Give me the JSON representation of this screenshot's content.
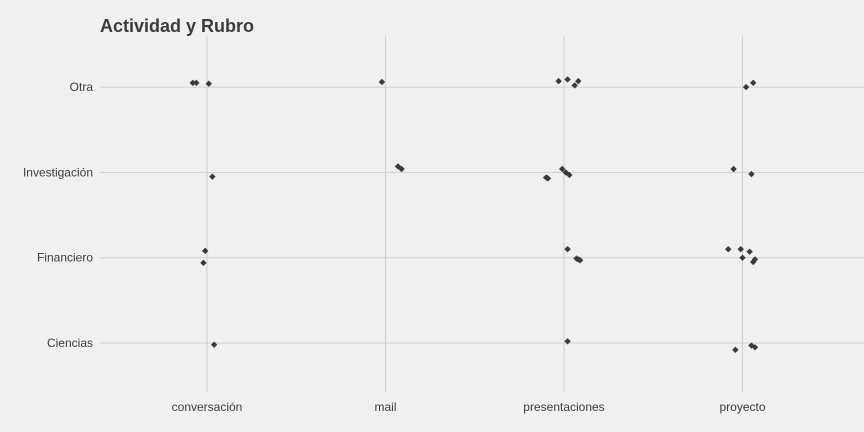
{
  "chart_data": {
    "type": "scatter",
    "title": "Actividad y Rubro",
    "xlabel": "",
    "ylabel": "",
    "x_categories": [
      "conversación",
      "mail",
      "presentaciones",
      "proyecto"
    ],
    "y_categories": [
      "Ciencias",
      "Financiero",
      "Investigación",
      "Otra"
    ],
    "grid": true,
    "legend": "none",
    "point_color": "#3a3a3a",
    "jitter": true,
    "points": [
      {
        "x": 0.92,
        "y": 3.05
      },
      {
        "x": 0.94,
        "y": 3.05
      },
      {
        "x": 1.01,
        "y": 3.04
      },
      {
        "x": 1.98,
        "y": 3.06
      },
      {
        "x": 2.97,
        "y": 3.07
      },
      {
        "x": 3.02,
        "y": 3.09
      },
      {
        "x": 3.06,
        "y": 3.02
      },
      {
        "x": 3.08,
        "y": 3.07
      },
      {
        "x": 4.02,
        "y": 3.0
      },
      {
        "x": 4.06,
        "y": 3.05
      },
      {
        "x": 1.03,
        "y": 1.95
      },
      {
        "x": 2.07,
        "y": 2.07
      },
      {
        "x": 2.09,
        "y": 2.04
      },
      {
        "x": 2.9,
        "y": 1.94
      },
      {
        "x": 2.91,
        "y": 1.93
      },
      {
        "x": 2.99,
        "y": 2.04
      },
      {
        "x": 3.01,
        "y": 2.0
      },
      {
        "x": 3.03,
        "y": 1.97
      },
      {
        "x": 3.95,
        "y": 2.04
      },
      {
        "x": 4.05,
        "y": 1.98
      },
      {
        "x": 0.99,
        "y": 1.08
      },
      {
        "x": 0.98,
        "y": 0.94
      },
      {
        "x": 3.02,
        "y": 1.1
      },
      {
        "x": 3.07,
        "y": 0.99
      },
      {
        "x": 3.09,
        "y": 0.97
      },
      {
        "x": 3.08,
        "y": 0.98
      },
      {
        "x": 3.92,
        "y": 1.1
      },
      {
        "x": 3.99,
        "y": 1.1
      },
      {
        "x": 4.04,
        "y": 1.07
      },
      {
        "x": 4.0,
        "y": 1.0
      },
      {
        "x": 4.07,
        "y": 0.98
      },
      {
        "x": 4.06,
        "y": 0.95
      },
      {
        "x": 1.04,
        "y": -0.02
      },
      {
        "x": 3.02,
        "y": 0.02
      },
      {
        "x": 3.96,
        "y": -0.08
      },
      {
        "x": 4.05,
        "y": -0.03
      },
      {
        "x": 4.07,
        "y": -0.05
      }
    ]
  }
}
